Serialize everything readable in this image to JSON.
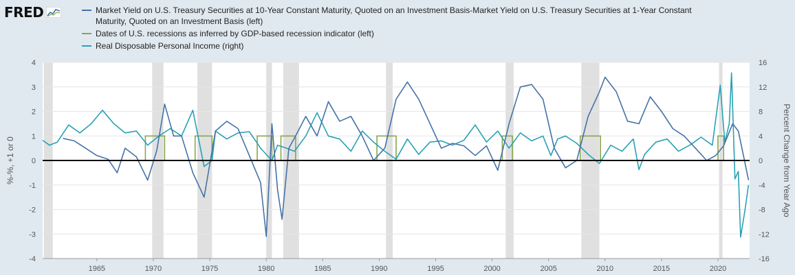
{
  "brand": {
    "name": "FRED"
  },
  "colors": {
    "series_spread": "#4572a7",
    "series_recession": "#89a54e",
    "series_income": "#28a1b4",
    "shading": "#e0e0e0",
    "background": "#e1e9f0",
    "plot_bg": "#ffffff"
  },
  "chart_data": {
    "type": "line",
    "legend": [
      "Market Yield on U.S. Treasury Securities at 10-Year Constant Maturity, Quoted on an Investment Basis-Market Yield on U.S. Treasury Securities at 1-Year Constant Maturity, Quoted on an Investment Basis (left)",
      "Dates of U.S. recessions as inferred by GDP-based recession indicator (left)",
      "Real Disposable Personal Income (right)"
    ],
    "ylabel_left": "%-%, +1 or 0",
    "ylabel_right": "Percent Change from Year Ago",
    "ylim_left": [
      -4,
      4
    ],
    "ylim_right": [
      -16,
      16
    ],
    "yticks_left": [
      "4",
      "3",
      "2",
      "1",
      "0",
      "-1",
      "-2",
      "-3",
      "-4"
    ],
    "yticks_right": [
      "16",
      "12",
      "8",
      "4",
      "0",
      "-4",
      "-8",
      "-12",
      "-16"
    ],
    "xticks": [
      "1965",
      "1970",
      "1975",
      "1980",
      "1985",
      "1990",
      "1995",
      "2000",
      "2005",
      "2010",
      "2015",
      "2020"
    ],
    "xlim": [
      1960.2,
      2022.8
    ],
    "recession_shading": [
      [
        1960.3,
        1961.1
      ],
      [
        1969.9,
        1970.9
      ],
      [
        1973.9,
        1975.2
      ],
      [
        1980.0,
        1980.5
      ],
      [
        1981.5,
        1982.9
      ],
      [
        1990.6,
        1991.2
      ],
      [
        2001.2,
        2001.9
      ],
      [
        2007.9,
        2009.5
      ],
      [
        2020.1,
        2020.4
      ]
    ],
    "recession_indicator": [
      [
        1969.3,
        1971.0
      ],
      [
        1973.7,
        1975.2
      ],
      [
        1979.2,
        1980.5
      ],
      [
        1981.3,
        1982.6
      ],
      [
        1989.8,
        1991.5
      ],
      [
        2000.9,
        2001.8
      ],
      [
        2007.8,
        2009.6
      ],
      [
        2020.0,
        2020.5
      ]
    ],
    "series": [
      {
        "name": "Market Yield on U.S. Treasury Securities at 10-Year Constant Maturity, Quoted on an Investment Basis-Market Yield on U.S. Treasury Securities at 1-Year Constant Maturity, Quoted on an Investment Basis",
        "axis": "left",
        "points": [
          [
            1962.0,
            0.9
          ],
          [
            1963.0,
            0.8
          ],
          [
            1964.0,
            0.5
          ],
          [
            1965.0,
            0.2
          ],
          [
            1966.0,
            0.05
          ],
          [
            1966.8,
            -0.5
          ],
          [
            1967.5,
            0.5
          ],
          [
            1968.5,
            0.15
          ],
          [
            1969.5,
            -0.8
          ],
          [
            1970.3,
            0.4
          ],
          [
            1971.0,
            2.3
          ],
          [
            1971.8,
            1.0
          ],
          [
            1972.5,
            1.0
          ],
          [
            1973.5,
            -0.5
          ],
          [
            1974.5,
            -1.5
          ],
          [
            1975.5,
            1.2
          ],
          [
            1976.5,
            1.6
          ],
          [
            1977.5,
            1.3
          ],
          [
            1978.5,
            0.2
          ],
          [
            1979.5,
            -0.9
          ],
          [
            1980.0,
            -3.1
          ],
          [
            1980.5,
            1.5
          ],
          [
            1981.0,
            -1.2
          ],
          [
            1981.4,
            -2.4
          ],
          [
            1982.0,
            0.5
          ],
          [
            1982.6,
            1.0
          ],
          [
            1983.5,
            1.8
          ],
          [
            1984.5,
            1.0
          ],
          [
            1985.5,
            2.4
          ],
          [
            1986.5,
            1.6
          ],
          [
            1987.5,
            1.8
          ],
          [
            1988.5,
            1.0
          ],
          [
            1989.5,
            0.0
          ],
          [
            1990.5,
            0.5
          ],
          [
            1991.5,
            2.5
          ],
          [
            1992.5,
            3.2
          ],
          [
            1993.5,
            2.5
          ],
          [
            1994.5,
            1.5
          ],
          [
            1995.5,
            0.5
          ],
          [
            1996.5,
            0.7
          ],
          [
            1997.5,
            0.6
          ],
          [
            1998.5,
            0.2
          ],
          [
            1999.5,
            0.6
          ],
          [
            2000.5,
            -0.4
          ],
          [
            2001.5,
            1.5
          ],
          [
            2002.5,
            3.0
          ],
          [
            2003.5,
            3.1
          ],
          [
            2004.5,
            2.5
          ],
          [
            2005.5,
            0.5
          ],
          [
            2006.5,
            -0.3
          ],
          [
            2007.5,
            0.0
          ],
          [
            2008.5,
            1.8
          ],
          [
            2009.5,
            2.8
          ],
          [
            2010.0,
            3.4
          ],
          [
            2011.0,
            2.8
          ],
          [
            2012.0,
            1.6
          ],
          [
            2013.0,
            1.5
          ],
          [
            2014.0,
            2.6
          ],
          [
            2015.0,
            2.0
          ],
          [
            2016.0,
            1.3
          ],
          [
            2017.0,
            1.0
          ],
          [
            2018.0,
            0.5
          ],
          [
            2019.0,
            0.0
          ],
          [
            2019.8,
            0.2
          ],
          [
            2020.5,
            0.6
          ],
          [
            2021.3,
            1.5
          ],
          [
            2021.8,
            1.2
          ],
          [
            2022.3,
            0.1
          ],
          [
            2022.7,
            -0.8
          ]
        ]
      },
      {
        "name": "Real Disposable Personal Income",
        "axis": "right",
        "points": [
          [
            1960.2,
            3.3
          ],
          [
            1960.8,
            2.5
          ],
          [
            1961.5,
            3.0
          ],
          [
            1962.5,
            5.8
          ],
          [
            1963.5,
            4.5
          ],
          [
            1964.5,
            6.0
          ],
          [
            1965.5,
            8.2
          ],
          [
            1966.5,
            6.0
          ],
          [
            1967.5,
            4.5
          ],
          [
            1968.5,
            4.8
          ],
          [
            1969.5,
            2.5
          ],
          [
            1970.5,
            4.0
          ],
          [
            1971.5,
            5.2
          ],
          [
            1972.5,
            4.0
          ],
          [
            1973.5,
            8.2
          ],
          [
            1974.5,
            -1.0
          ],
          [
            1975.2,
            0.0
          ],
          [
            1975.5,
            4.8
          ],
          [
            1976.5,
            3.5
          ],
          [
            1977.5,
            4.5
          ],
          [
            1978.5,
            4.7
          ],
          [
            1979.5,
            2.0
          ],
          [
            1980.5,
            0.0
          ],
          [
            1981.0,
            2.5
          ],
          [
            1981.8,
            2.0
          ],
          [
            1982.5,
            1.5
          ],
          [
            1983.5,
            4.0
          ],
          [
            1984.5,
            7.8
          ],
          [
            1985.5,
            4.0
          ],
          [
            1986.5,
            3.5
          ],
          [
            1987.5,
            1.5
          ],
          [
            1988.5,
            4.8
          ],
          [
            1989.5,
            3.0
          ],
          [
            1990.5,
            1.5
          ],
          [
            1991.5,
            0.2
          ],
          [
            1992.5,
            3.5
          ],
          [
            1993.5,
            1.0
          ],
          [
            1994.5,
            3.0
          ],
          [
            1995.5,
            3.2
          ],
          [
            1996.5,
            2.5
          ],
          [
            1997.5,
            3.3
          ],
          [
            1998.5,
            5.8
          ],
          [
            1999.5,
            3.0
          ],
          [
            2000.5,
            4.8
          ],
          [
            2001.5,
            2.0
          ],
          [
            2002.5,
            4.5
          ],
          [
            2003.5,
            3.2
          ],
          [
            2004.5,
            4.0
          ],
          [
            2005.2,
            0.8
          ],
          [
            2005.8,
            3.5
          ],
          [
            2006.5,
            4.0
          ],
          [
            2007.5,
            2.8
          ],
          [
            2008.5,
            1.0
          ],
          [
            2009.5,
            -0.5
          ],
          [
            2010.5,
            2.5
          ],
          [
            2011.5,
            1.5
          ],
          [
            2012.5,
            3.5
          ],
          [
            2013.0,
            -1.5
          ],
          [
            2013.5,
            1.0
          ],
          [
            2014.5,
            3.0
          ],
          [
            2015.5,
            3.5
          ],
          [
            2016.5,
            1.5
          ],
          [
            2017.5,
            2.5
          ],
          [
            2018.5,
            3.8
          ],
          [
            2019.5,
            2.5
          ],
          [
            2020.2,
            12.3
          ],
          [
            2020.6,
            3.0
          ],
          [
            2021.0,
            6.0
          ],
          [
            2021.2,
            14.3
          ],
          [
            2021.5,
            -3.0
          ],
          [
            2021.8,
            -1.8
          ],
          [
            2022.0,
            -12.5
          ],
          [
            2022.4,
            -8.0
          ],
          [
            2022.7,
            -4.0
          ]
        ]
      }
    ]
  }
}
